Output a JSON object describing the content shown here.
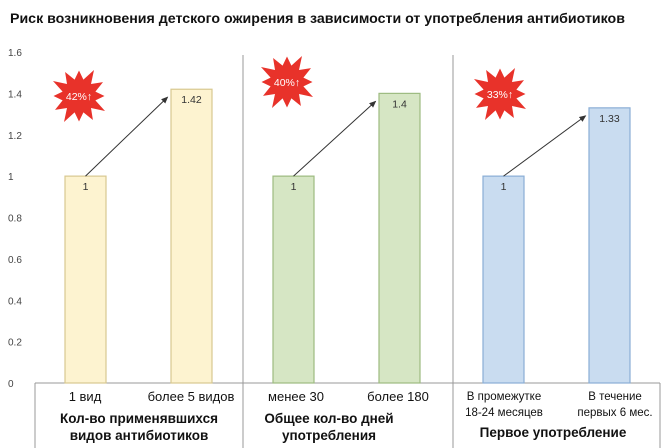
{
  "chart_data": {
    "type": "bar",
    "title": "Риск возникновения детского ожирения в зависимости от употребления антибиотиков",
    "ylim": [
      0,
      1.6
    ],
    "y_ticks": [
      "0",
      "0.2",
      "0.4",
      "0.6",
      "0.8",
      "1",
      "1.2",
      "1.4",
      "1.6"
    ],
    "grid": false,
    "groups": [
      {
        "label": [
          "Кол-во применявшихся",
          "видов антибиотиков"
        ],
        "annotation": "42%↑",
        "bars": [
          {
            "category": [
              "1 вид"
            ],
            "value": 1,
            "data_label": "1",
            "color": "#fdf3d0",
            "stroke": "#d8c890"
          },
          {
            "category": [
              "более 5 видов"
            ],
            "value": 1.42,
            "data_label": "1.42",
            "color": "#fdf3d0",
            "stroke": "#d8c890"
          }
        ]
      },
      {
        "label": [
          "Общее кол-во дней",
          "употребления"
        ],
        "annotation": "40%↑",
        "bars": [
          {
            "category": [
              "менее 30"
            ],
            "value": 1,
            "data_label": "1",
            "color": "#d6e6c4",
            "stroke": "#9dbb80"
          },
          {
            "category": [
              "более 180"
            ],
            "value": 1.4,
            "data_label": "1.4",
            "color": "#d6e6c4",
            "stroke": "#9dbb80"
          }
        ]
      },
      {
        "label": [
          "Первое употребление"
        ],
        "annotation": "33%↑",
        "bars": [
          {
            "category": [
              "В промежутке",
              "18-24 месяцев"
            ],
            "value": 1,
            "data_label": "1",
            "color": "#c9dcf0",
            "stroke": "#8aaed6"
          },
          {
            "category": [
              "В течение",
              "первых 6 мес."
            ],
            "value": 1.33,
            "data_label": "1.33",
            "color": "#c9dcf0",
            "stroke": "#8aaed6"
          }
        ]
      }
    ],
    "annotation_color": "#e8322a"
  }
}
